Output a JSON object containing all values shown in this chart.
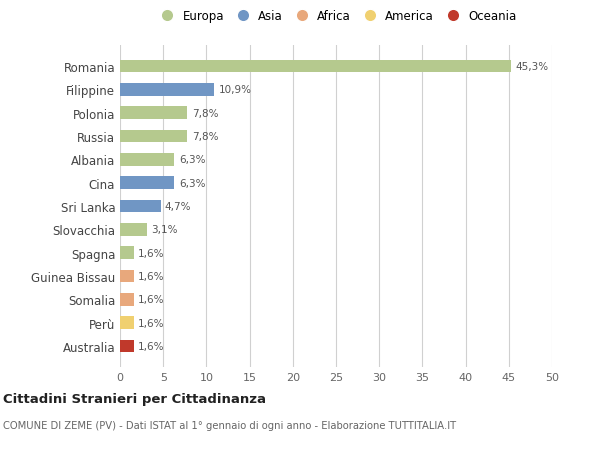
{
  "categories": [
    "Romania",
    "Filippine",
    "Polonia",
    "Russia",
    "Albania",
    "Cina",
    "Sri Lanka",
    "Slovacchia",
    "Spagna",
    "Guinea Bissau",
    "Somalia",
    "Perù",
    "Australia"
  ],
  "values": [
    45.3,
    10.9,
    7.8,
    7.8,
    6.3,
    6.3,
    4.7,
    3.1,
    1.6,
    1.6,
    1.6,
    1.6,
    1.6
  ],
  "labels": [
    "45,3%",
    "10,9%",
    "7,8%",
    "7,8%",
    "6,3%",
    "6,3%",
    "4,7%",
    "3,1%",
    "1,6%",
    "1,6%",
    "1,6%",
    "1,6%",
    "1,6%"
  ],
  "colors": [
    "#b5c98e",
    "#7096c4",
    "#b5c98e",
    "#b5c98e",
    "#b5c98e",
    "#7096c4",
    "#7096c4",
    "#b5c98e",
    "#b5c98e",
    "#e8a87c",
    "#e8a87c",
    "#f0d070",
    "#c0392b"
  ],
  "legend": [
    {
      "label": "Europa",
      "color": "#b5c98e"
    },
    {
      "label": "Asia",
      "color": "#7096c4"
    },
    {
      "label": "Africa",
      "color": "#e8a87c"
    },
    {
      "label": "America",
      "color": "#f0d070"
    },
    {
      "label": "Oceania",
      "color": "#c0392b"
    }
  ],
  "xlim": [
    0,
    50
  ],
  "xticks": [
    0,
    5,
    10,
    15,
    20,
    25,
    30,
    35,
    40,
    45,
    50
  ],
  "title_bold": "Cittadini Stranieri per Cittadinanza",
  "title_sub": "COMUNE DI ZEME (PV) - Dati ISTAT al 1° gennaio di ogni anno - Elaborazione TUTTITALIA.IT",
  "bg_color": "#ffffff",
  "grid_color": "#d0d0d0",
  "bar_height": 0.55
}
